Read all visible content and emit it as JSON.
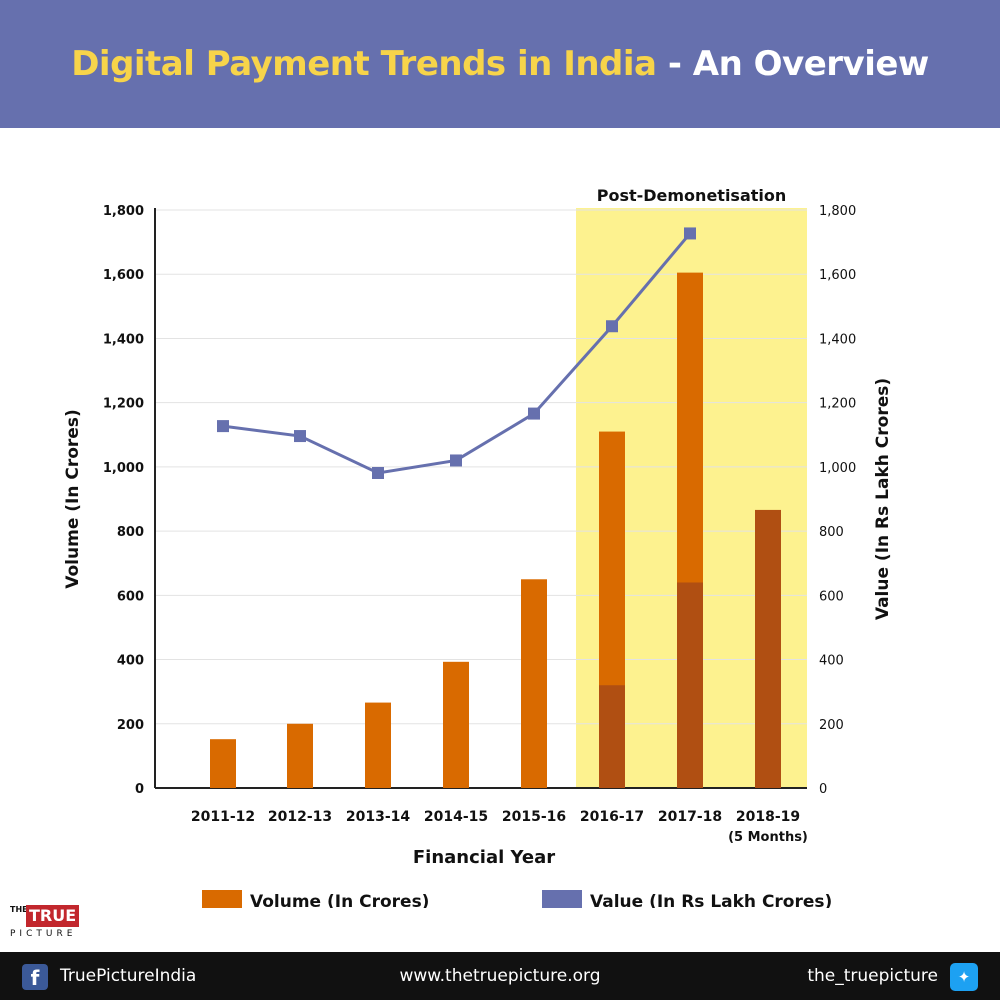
{
  "header": {
    "title_main": "Digital Payment Trends in India",
    "title_sub": "- An Overview"
  },
  "chart_data": {
    "type": "bar",
    "categories": [
      "2011-12",
      "2012-13",
      "2013-14",
      "2014-15",
      "2015-16",
      "2016-17",
      "2017-18",
      "2018-19"
    ],
    "category_sublabels": [
      "",
      "",
      "",
      "",
      "",
      "",
      "",
      "(5 Months)"
    ],
    "series": [
      {
        "name": "Volume (In Crores)",
        "kind": "bar",
        "axis": "left",
        "values": [
          152,
          200,
          266,
          393,
          650,
          1110,
          1605,
          866
        ],
        "color": "#d96a00"
      },
      {
        "name": "Value (In Rs Lakh Crores)",
        "kind": "line",
        "axis": "right",
        "values": [
          1127,
          1096,
          981,
          1020,
          1166,
          1438,
          1727,
          null
        ],
        "color": "#6670ae"
      }
    ],
    "xlabel": "Financial Year",
    "ylabel_left": "Volume (In Crores)",
    "ylabel_right": "Value (In Rs Lakh Crores)",
    "ylim": [
      0,
      1800
    ],
    "ticks": [
      "0",
      "200",
      "400",
      "600",
      "800",
      "1,000",
      "1,200",
      "1,400",
      "1,600",
      "1,800"
    ],
    "highlight": {
      "label": "Post-Demonetisation",
      "categories": [
        "2016-17",
        "2017-18",
        "2018-19"
      ],
      "color": "#fdf28f"
    },
    "grid": true,
    "legend_position": "bottom"
  },
  "footer": {
    "facebook": "TruePictureIndia",
    "website": "www.thetruepicture.org",
    "twitter": "the_truepicture"
  },
  "logo": {
    "the": "THE",
    "true": "TRUE",
    "picture": "PICTURE"
  },
  "colors": {
    "header_bg": "#6670ae",
    "title_yellow": "#f7d44a",
    "bar": "#d96a00",
    "bar_overlap": "#b04f12",
    "line": "#6670ae",
    "footer_bg": "#111111"
  }
}
